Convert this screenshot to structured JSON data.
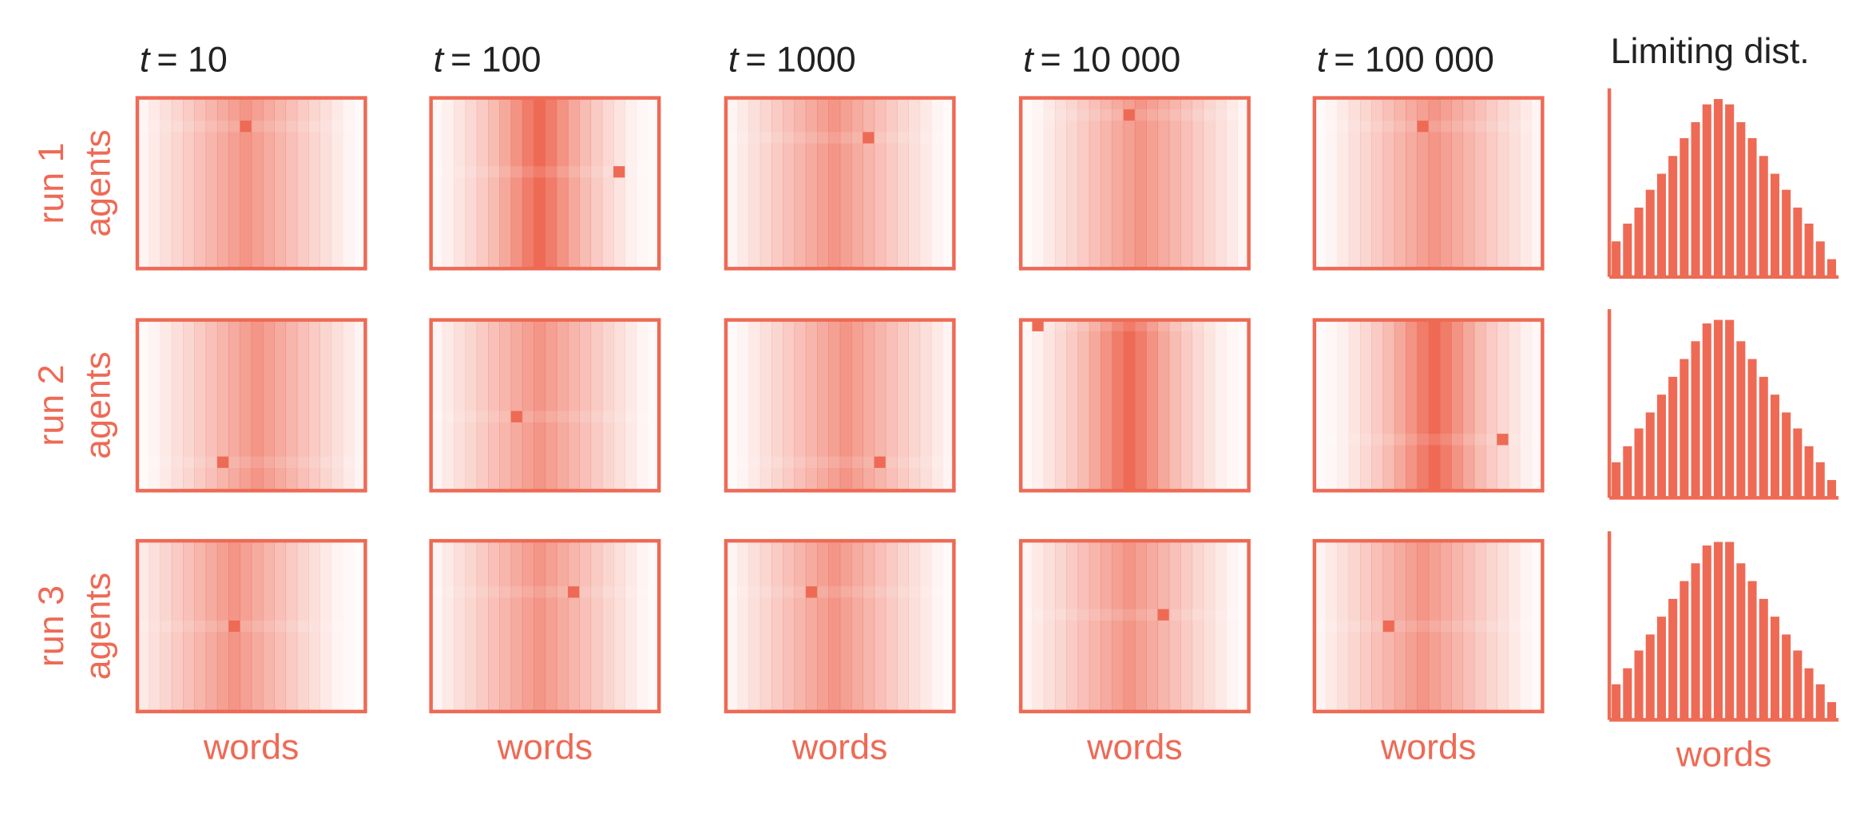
{
  "chart_data": [
    {
      "type": "heatmap",
      "title_symbol": "t",
      "title": "= 10",
      "run_label": "run 1",
      "y_label": "agents",
      "color": "#ee6a55",
      "zlim": [
        0,
        100
      ],
      "rows": 15,
      "values": [
        7,
        14,
        21,
        28,
        35,
        42,
        49,
        56,
        63,
        70,
        63,
        56,
        49,
        42,
        35,
        28,
        21,
        14,
        7,
        3
      ],
      "highlight": {
        "col": 9,
        "row": 2
      }
    },
    {
      "type": "heatmap",
      "title_symbol": "t",
      "title": "= 100",
      "color": "#ee6a55",
      "zlim": [
        0,
        100
      ],
      "rows": 15,
      "values": [
        5,
        10,
        18,
        26,
        35,
        45,
        58,
        72,
        88,
        100,
        88,
        72,
        58,
        45,
        35,
        26,
        18,
        10,
        5,
        3
      ],
      "highlight": {
        "col": 16,
        "row": 6
      }
    },
    {
      "type": "heatmap",
      "title_symbol": "t",
      "title": "= 1000",
      "color": "#ee6a55",
      "zlim": [
        0,
        100
      ],
      "rows": 15,
      "values": [
        7,
        14,
        21,
        28,
        35,
        42,
        49,
        56,
        63,
        70,
        63,
        56,
        49,
        42,
        35,
        28,
        21,
        14,
        7,
        3
      ],
      "highlight": {
        "col": 12,
        "row": 3
      }
    },
    {
      "type": "heatmap",
      "title_symbol": "t",
      "title": "= 10 000",
      "color": "#ee6a55",
      "zlim": [
        0,
        100
      ],
      "rows": 15,
      "values": [
        3,
        7,
        14,
        21,
        28,
        35,
        42,
        49,
        56,
        63,
        70,
        63,
        56,
        49,
        42,
        35,
        28,
        21,
        14,
        7
      ],
      "highlight": {
        "col": 9,
        "row": 1
      }
    },
    {
      "type": "heatmap",
      "title_symbol": "t",
      "title": "= 100 000",
      "color": "#ee6a55",
      "zlim": [
        0,
        100
      ],
      "rows": 15,
      "values": [
        3,
        7,
        14,
        21,
        28,
        35,
        42,
        49,
        56,
        63,
        70,
        63,
        56,
        49,
        42,
        35,
        28,
        21,
        14,
        7
      ],
      "highlight": {
        "col": 9,
        "row": 2
      }
    },
    {
      "type": "heatmap",
      "run_label": "run 2",
      "y_label": "agents",
      "color": "#ee6a55",
      "zlim": [
        0,
        100
      ],
      "rows": 15,
      "values": [
        3,
        7,
        14,
        21,
        28,
        35,
        42,
        49,
        56,
        63,
        70,
        63,
        56,
        49,
        42,
        35,
        28,
        21,
        14,
        7
      ],
      "highlight": {
        "col": 7,
        "row": 12
      }
    },
    {
      "type": "heatmap",
      "color": "#ee6a55",
      "zlim": [
        0,
        100
      ],
      "rows": 15,
      "values": [
        7,
        14,
        21,
        28,
        35,
        42,
        49,
        56,
        63,
        70,
        63,
        56,
        49,
        42,
        35,
        28,
        21,
        14,
        7,
        3
      ],
      "highlight": {
        "col": 7,
        "row": 8
      }
    },
    {
      "type": "heatmap",
      "color": "#ee6a55",
      "zlim": [
        0,
        100
      ],
      "rows": 15,
      "values": [
        3,
        7,
        14,
        21,
        28,
        35,
        42,
        49,
        56,
        63,
        70,
        63,
        56,
        49,
        42,
        35,
        28,
        21,
        14,
        7
      ],
      "highlight": {
        "col": 13,
        "row": 12
      }
    },
    {
      "type": "heatmap",
      "color": "#ee6a55",
      "zlim": [
        0,
        100
      ],
      "rows": 15,
      "values": [
        5,
        10,
        18,
        26,
        35,
        45,
        58,
        72,
        88,
        100,
        88,
        72,
        58,
        45,
        35,
        26,
        18,
        10,
        5,
        3
      ],
      "highlight": {
        "col": 1,
        "row": 0
      }
    },
    {
      "type": "heatmap",
      "color": "#ee6a55",
      "zlim": [
        0,
        100
      ],
      "rows": 15,
      "values": [
        3,
        5,
        10,
        18,
        26,
        35,
        45,
        58,
        72,
        88,
        100,
        88,
        72,
        58,
        45,
        35,
        26,
        18,
        10,
        5
      ],
      "highlight": {
        "col": 16,
        "row": 10
      }
    },
    {
      "type": "heatmap",
      "run_label": "run 3",
      "y_label": "agents",
      "x_label": "words",
      "color": "#ee6a55",
      "zlim": [
        0,
        100
      ],
      "rows": 15,
      "values": [
        14,
        21,
        28,
        35,
        42,
        49,
        56,
        63,
        70,
        63,
        56,
        49,
        42,
        35,
        28,
        21,
        14,
        7,
        4,
        2
      ],
      "highlight": {
        "col": 8,
        "row": 7
      }
    },
    {
      "type": "heatmap",
      "x_label": "words",
      "color": "#ee6a55",
      "zlim": [
        0,
        100
      ],
      "rows": 15,
      "values": [
        7,
        14,
        21,
        28,
        35,
        42,
        49,
        56,
        63,
        70,
        63,
        56,
        49,
        42,
        35,
        28,
        21,
        14,
        7,
        3
      ],
      "highlight": {
        "col": 12,
        "row": 4
      }
    },
    {
      "type": "heatmap",
      "x_label": "words",
      "color": "#ee6a55",
      "zlim": [
        0,
        100
      ],
      "rows": 15,
      "values": [
        7,
        14,
        21,
        28,
        35,
        42,
        49,
        56,
        63,
        70,
        63,
        56,
        49,
        42,
        35,
        28,
        21,
        14,
        7,
        3
      ],
      "highlight": {
        "col": 7,
        "row": 4
      }
    },
    {
      "type": "heatmap",
      "x_label": "words",
      "color": "#ee6a55",
      "zlim": [
        0,
        100
      ],
      "rows": 15,
      "values": [
        7,
        14,
        21,
        28,
        35,
        42,
        49,
        56,
        63,
        70,
        63,
        56,
        49,
        42,
        35,
        28,
        21,
        14,
        7,
        3
      ],
      "highlight": {
        "col": 12,
        "row": 6
      }
    },
    {
      "type": "heatmap",
      "x_label": "words",
      "color": "#ee6a55",
      "zlim": [
        0,
        100
      ],
      "rows": 15,
      "values": [
        7,
        14,
        21,
        28,
        35,
        42,
        49,
        56,
        63,
        70,
        63,
        56,
        49,
        42,
        35,
        28,
        21,
        14,
        7,
        3
      ],
      "highlight": {
        "col": 6,
        "row": 7
      }
    },
    {
      "type": "bar",
      "title": "Limiting dist.",
      "color": "#ee6a55",
      "ylim": [
        0,
        106
      ],
      "values": [
        20,
        30,
        39,
        49,
        58,
        68,
        78,
        87,
        97,
        100,
        97,
        87,
        78,
        68,
        58,
        49,
        39,
        30,
        20,
        10
      ]
    },
    {
      "type": "bar",
      "color": "#ee6a55",
      "ylim": [
        0,
        106
      ],
      "values": [
        20,
        29,
        39,
        48,
        58,
        68,
        78,
        88,
        98,
        100,
        100,
        88,
        78,
        68,
        58,
        48,
        39,
        29,
        20,
        10
      ]
    },
    {
      "type": "bar",
      "x_label": "words",
      "color": "#ee6a55",
      "ylim": [
        0,
        106
      ],
      "values": [
        20,
        29,
        39,
        48,
        58,
        68,
        78,
        88,
        98,
        100,
        100,
        88,
        78,
        68,
        58,
        48,
        39,
        29,
        20,
        10
      ]
    }
  ]
}
